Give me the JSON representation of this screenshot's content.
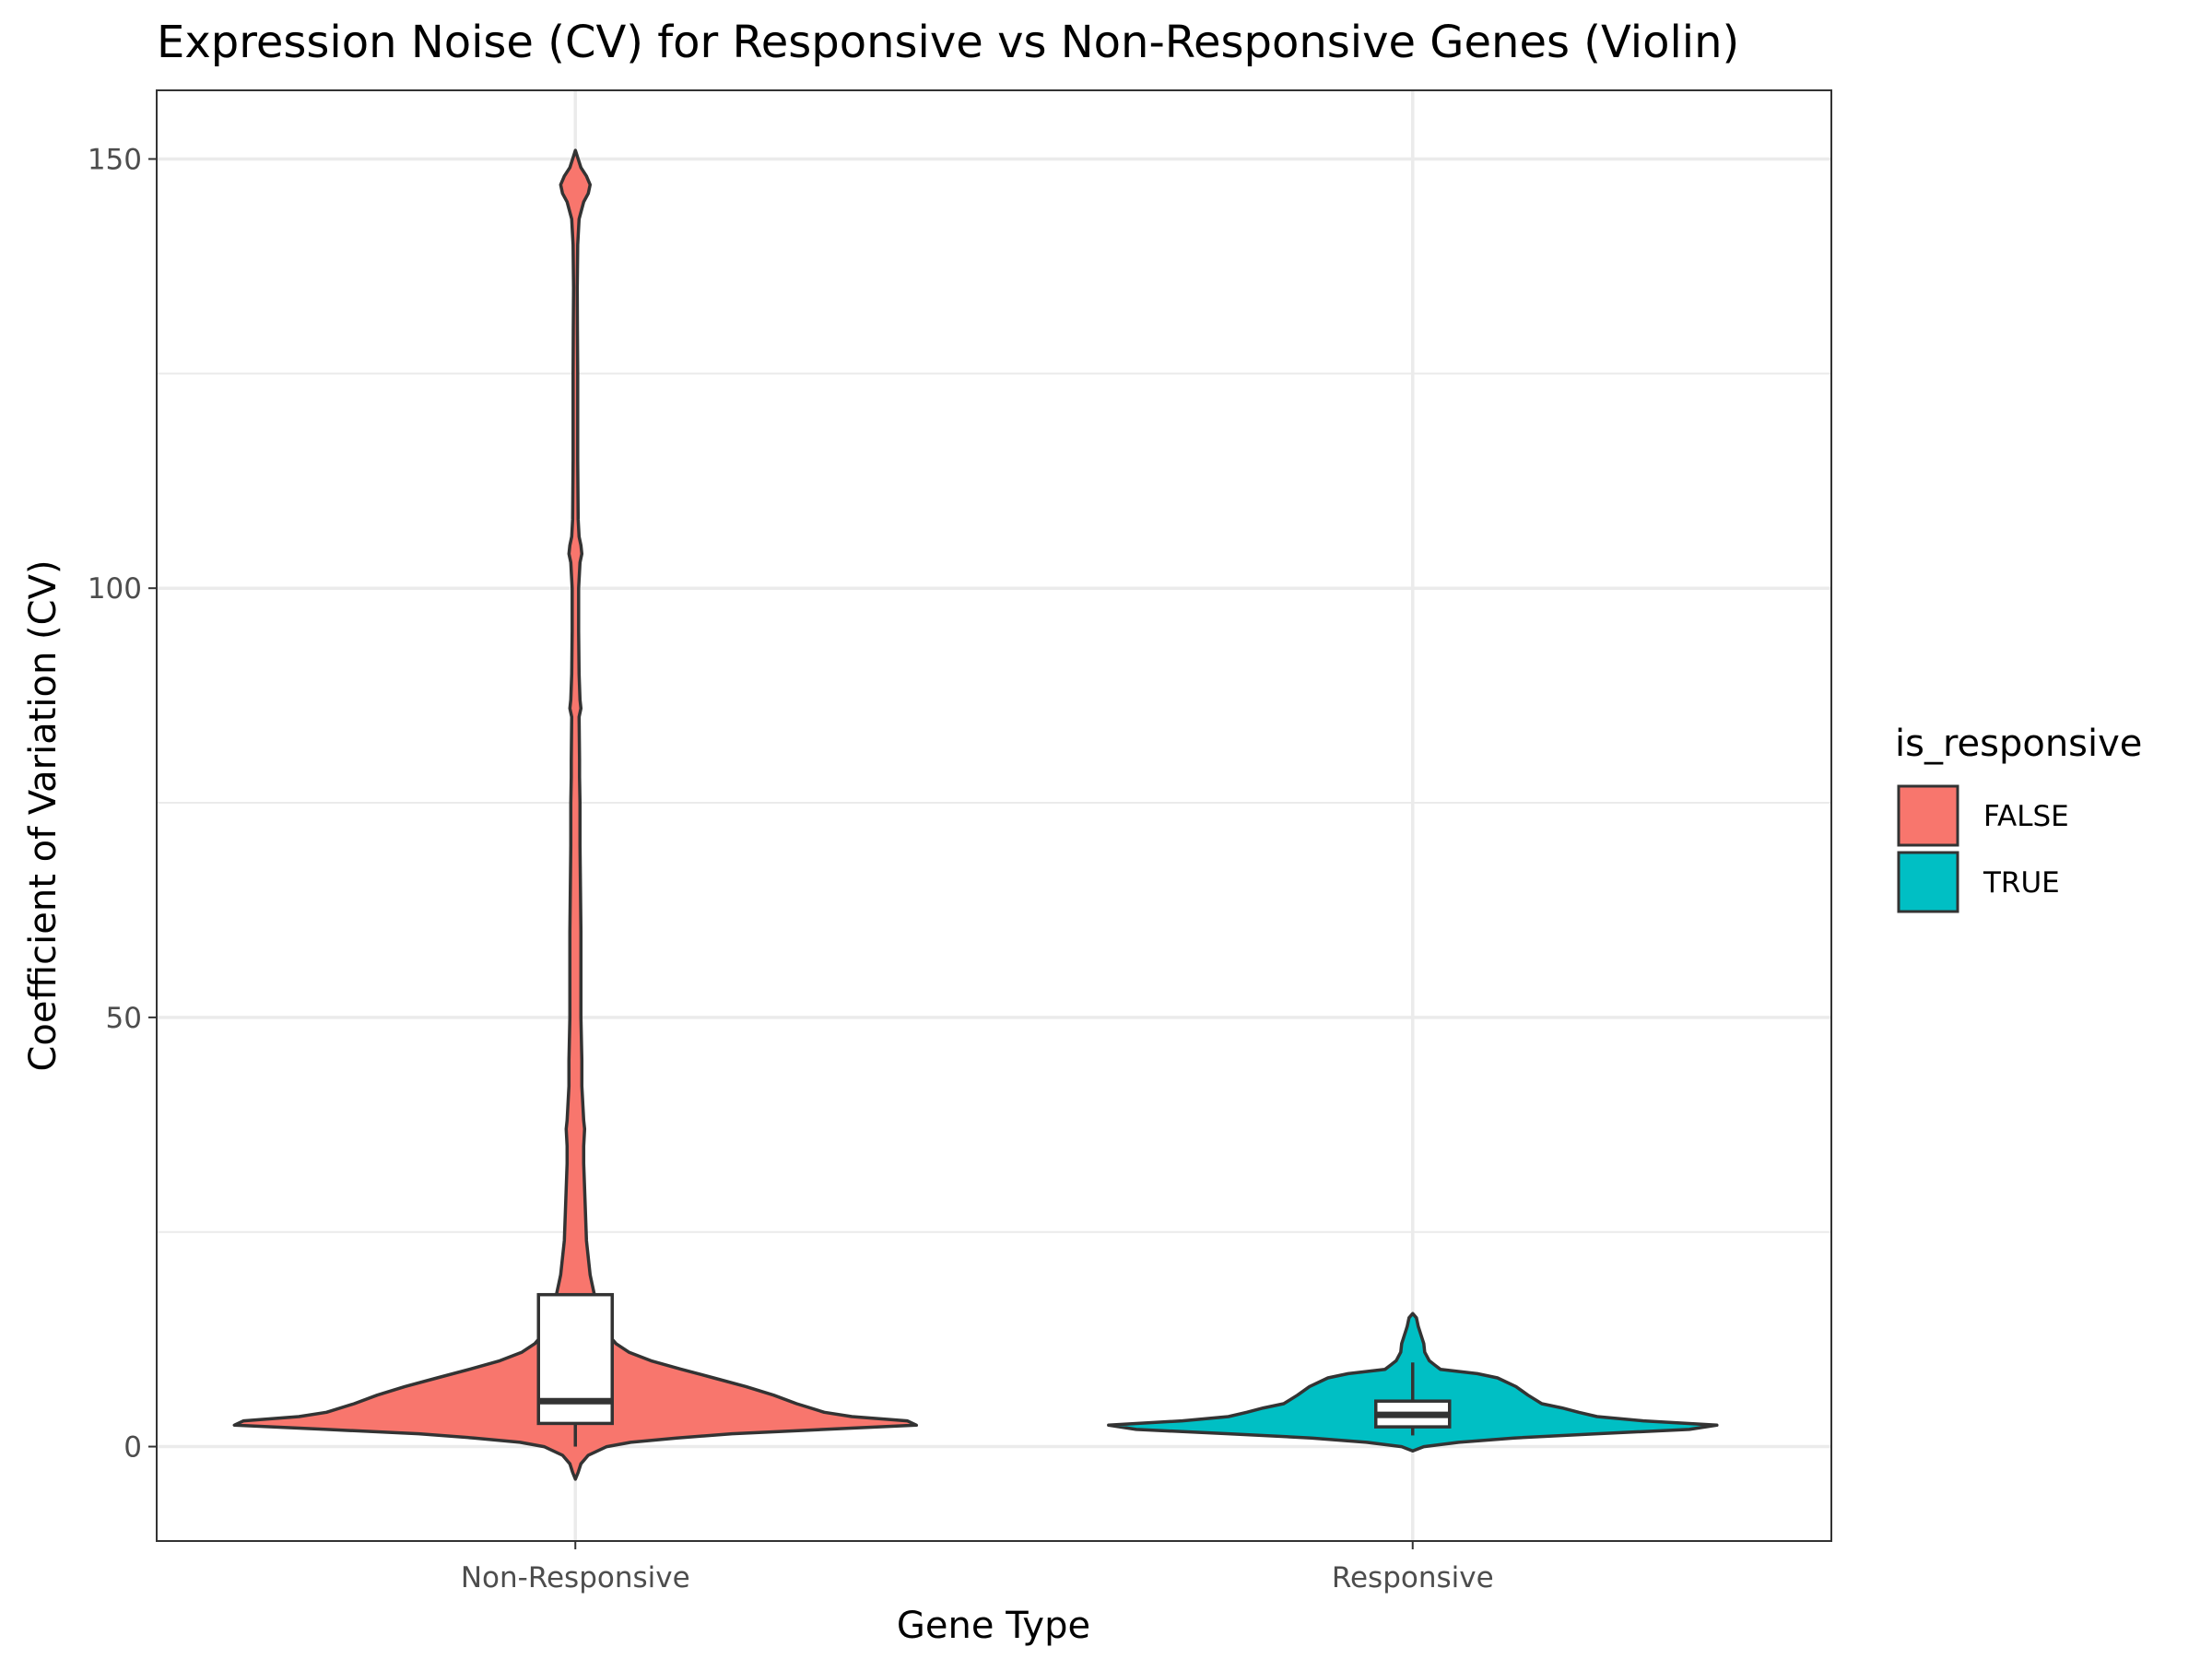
{
  "chart_data": {
    "type": "violin",
    "title": "Expression Noise (CV) for Responsive vs Non-Responsive Genes (Violin)",
    "xlabel": "Gene Type",
    "ylabel": "Coefficient of Variation (CV)",
    "categories": [
      "Non-Responsive",
      "Responsive"
    ],
    "ylim": [
      -11,
      158
    ],
    "y_ticks": [
      0,
      50,
      100,
      150
    ],
    "y_tick_labels": [
      "0",
      "50",
      "100",
      "150"
    ],
    "grid": true,
    "legend": {
      "title": "is_responsive",
      "position": "right",
      "entries": [
        {
          "label": "FALSE",
          "color": "#F8766D"
        },
        {
          "label": "TRUE",
          "color": "#00BFC4"
        }
      ]
    },
    "series": [
      {
        "category": "Non-Responsive",
        "group": "FALSE",
        "color": "#F8766D",
        "violin_range": [
          -3.8,
          151
        ],
        "box": {
          "min": 0,
          "q1": 2.7,
          "median": 5.3,
          "q3": 17.7,
          "max": 17.7
        }
      },
      {
        "category": "Responsive",
        "group": "TRUE",
        "color": "#00BFC4",
        "violin_range": [
          -0.5,
          15.5
        ],
        "box": {
          "min": 1.3,
          "q1": 2.3,
          "median": 3.7,
          "q3": 5.3,
          "max": 9.8
        }
      }
    ]
  }
}
